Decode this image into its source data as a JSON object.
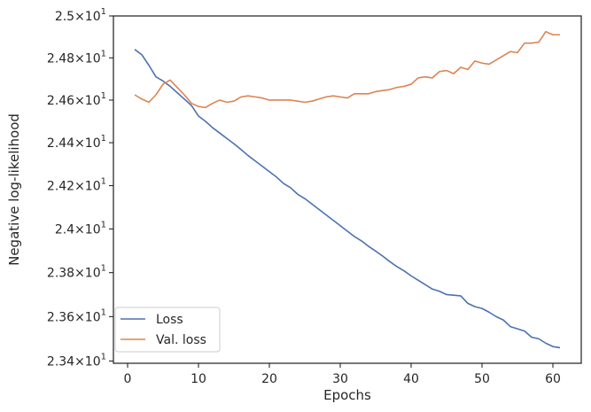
{
  "chart_data": {
    "type": "line",
    "xlabel": "Epochs",
    "ylabel": "Negative log-likelihood",
    "xlim": [
      -2,
      64
    ],
    "ylim": [
      23.39,
      25.0
    ],
    "y_scale": "log",
    "grid": false,
    "legend_position": "lower-left",
    "xticks": [
      0,
      10,
      20,
      30,
      40,
      50,
      60
    ],
    "xtick_labels": [
      "0",
      "10",
      "20",
      "30",
      "40",
      "50",
      "60"
    ],
    "yticks": [
      23.4,
      23.6,
      23.8,
      24.0,
      24.2,
      24.4,
      24.6,
      24.8,
      25.0
    ],
    "ytick_labels": [
      {
        "mantissa": "2.34",
        "base": "10",
        "exp": "1"
      },
      {
        "mantissa": "2.36",
        "base": "10",
        "exp": "1"
      },
      {
        "mantissa": "2.38",
        "base": "10",
        "exp": "1"
      },
      {
        "mantissa": "2.4",
        "base": "10",
        "exp": "1"
      },
      {
        "mantissa": "2.42",
        "base": "10",
        "exp": "1"
      },
      {
        "mantissa": "2.44",
        "base": "10",
        "exp": "1"
      },
      {
        "mantissa": "2.46",
        "base": "10",
        "exp": "1"
      },
      {
        "mantissa": "2.48",
        "base": "10",
        "exp": "1"
      },
      {
        "mantissa": "2.5",
        "base": "10",
        "exp": "1"
      }
    ],
    "x": [
      1,
      2,
      3,
      4,
      5,
      6,
      7,
      8,
      9,
      10,
      11,
      12,
      13,
      14,
      15,
      16,
      17,
      18,
      19,
      20,
      21,
      22,
      23,
      24,
      25,
      26,
      27,
      28,
      29,
      30,
      31,
      32,
      33,
      34,
      35,
      36,
      37,
      38,
      39,
      40,
      41,
      42,
      43,
      44,
      45,
      46,
      47,
      48,
      49,
      50,
      51,
      52,
      53,
      54,
      55,
      56,
      57,
      58,
      59,
      60,
      61
    ],
    "series": [
      {
        "name": "Loss",
        "color": "#4c72b0",
        "values": [
          24.84,
          24.815,
          24.765,
          24.71,
          24.69,
          24.665,
          24.635,
          24.605,
          24.575,
          24.525,
          24.5,
          24.47,
          24.445,
          24.42,
          24.395,
          24.368,
          24.34,
          24.315,
          24.29,
          24.265,
          24.24,
          24.21,
          24.19,
          24.16,
          24.14,
          24.115,
          24.09,
          24.065,
          24.04,
          24.015,
          23.99,
          23.965,
          23.945,
          23.92,
          23.898,
          23.875,
          23.85,
          23.827,
          23.808,
          23.785,
          23.765,
          23.745,
          23.725,
          23.715,
          23.7,
          23.697,
          23.694,
          23.66,
          23.645,
          23.637,
          23.62,
          23.6,
          23.585,
          23.555,
          23.545,
          23.535,
          23.507,
          23.5,
          23.48,
          23.465,
          23.46
        ]
      },
      {
        "name": "Val. loss",
        "color": "#dd8452",
        "values": [
          24.625,
          24.605,
          24.59,
          24.625,
          24.675,
          24.695,
          24.66,
          24.625,
          24.585,
          24.57,
          24.565,
          24.585,
          24.6,
          24.59,
          24.595,
          24.615,
          24.62,
          24.615,
          24.61,
          24.6,
          24.6,
          24.6,
          24.6,
          24.595,
          24.59,
          24.595,
          24.605,
          24.615,
          24.62,
          24.615,
          24.61,
          24.63,
          24.63,
          24.63,
          24.64,
          24.645,
          24.65,
          24.66,
          24.665,
          24.675,
          24.705,
          24.71,
          24.705,
          24.735,
          24.74,
          24.725,
          24.755,
          24.745,
          24.785,
          24.775,
          24.77,
          24.79,
          24.81,
          24.83,
          24.825,
          24.87,
          24.87,
          24.875,
          24.925,
          24.91,
          24.91
        ]
      }
    ]
  }
}
